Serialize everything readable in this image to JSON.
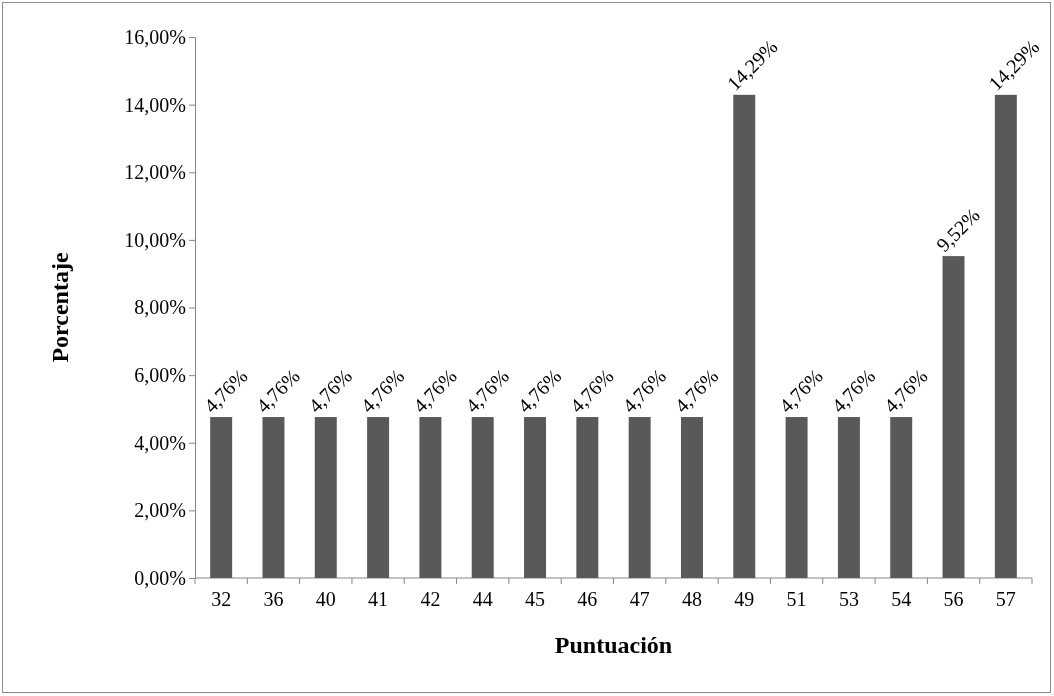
{
  "chart_data": {
    "type": "bar",
    "xlabel": "Puntuación",
    "ylabel": "Porcentaje",
    "categories": [
      "32",
      "36",
      "40",
      "41",
      "42",
      "44",
      "45",
      "46",
      "47",
      "48",
      "49",
      "51",
      "53",
      "54",
      "56",
      "57"
    ],
    "values": [
      4.76,
      4.76,
      4.76,
      4.76,
      4.76,
      4.76,
      4.76,
      4.76,
      4.76,
      4.76,
      14.29,
      4.76,
      4.76,
      4.76,
      9.52,
      14.29
    ],
    "value_labels": [
      "4,76%",
      "4,76%",
      "4,76%",
      "4,76%",
      "4,76%",
      "4,76%",
      "4,76%",
      "4,76%",
      "4,76%",
      "4,76%",
      "14,29%",
      "4,76%",
      "4,76%",
      "4,76%",
      "9,52%",
      "14,29%"
    ],
    "color": "#595959",
    "ylim": [
      0,
      16
    ],
    "yticks": [
      {
        "value": 0,
        "label": "0,00%"
      },
      {
        "value": 2,
        "label": "2,00%"
      },
      {
        "value": 4,
        "label": "4,00%"
      },
      {
        "value": 6,
        "label": "6,00%"
      },
      {
        "value": 8,
        "label": "8,00%"
      },
      {
        "value": 10,
        "label": "10,00%"
      },
      {
        "value": 12,
        "label": "12,00%"
      },
      {
        "value": 14,
        "label": "14,00%"
      },
      {
        "value": 16,
        "label": "16,00%"
      }
    ],
    "grid": false
  }
}
